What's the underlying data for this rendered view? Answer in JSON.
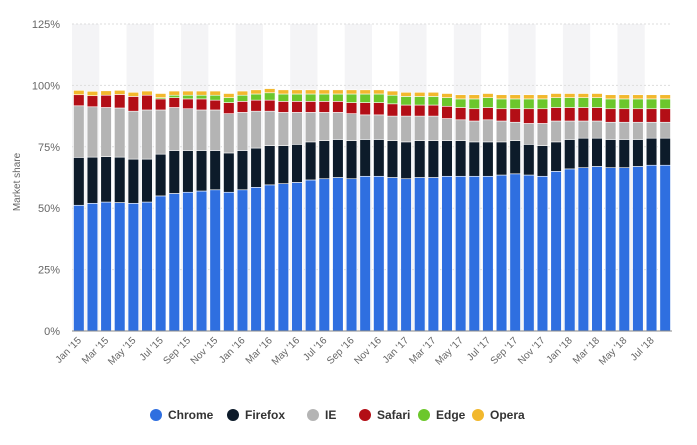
{
  "chart_data": {
    "type": "bar",
    "stacked": true,
    "title": "",
    "xlabel": "",
    "ylabel": "Market share",
    "ylim": [
      0,
      125
    ],
    "yticks": [
      0,
      25,
      50,
      75,
      100,
      125
    ],
    "ytick_labels": [
      "0%",
      "25%",
      "50%",
      "75%",
      "100%",
      "125%"
    ],
    "legend_position": "bottom",
    "categories": [
      "Jan '15",
      "Feb '15",
      "Mar '15",
      "Apr '15",
      "May '15",
      "Jun '15",
      "Jul '15",
      "Aug '15",
      "Sep '15",
      "Oct '15",
      "Nov '15",
      "Dec '15",
      "Jan '16",
      "Feb '16",
      "Mar '16",
      "Apr '16",
      "May '16",
      "Jun '16",
      "Jul '16",
      "Aug '16",
      "Sep '16",
      "Oct '16",
      "Nov '16",
      "Dec '16",
      "Jan '17",
      "Feb '17",
      "Mar '17",
      "Apr '17",
      "May '17",
      "Jun '17",
      "Jul '17",
      "Aug '17",
      "Sep '17",
      "Oct '17",
      "Nov '17",
      "Dec '17",
      "Jan '18",
      "Feb '18",
      "Mar '18",
      "Apr '18",
      "May '18",
      "Jun '18",
      "Jul '18",
      "Aug '18"
    ],
    "shown_tick_labels": [
      "Jan '15",
      "Mar '15",
      "May '15",
      "Jul '15",
      "Sep '15",
      "Nov '15",
      "Jan '16",
      "Mar '16",
      "May '16",
      "Jul '16",
      "Sep '16",
      "Nov '16",
      "Jan '17",
      "Mar '17",
      "May '17",
      "Jul '17",
      "Sep '17",
      "Nov '17",
      "Jan '18",
      "Mar '18",
      "May '18",
      "Jul '18"
    ],
    "series": [
      {
        "name": "Chrome",
        "color": "#2f6fe0",
        "values": [
          51.2,
          52.0,
          52.5,
          52.3,
          52.0,
          52.5,
          55.0,
          56.0,
          56.5,
          57.0,
          57.5,
          56.5,
          57.5,
          58.5,
          59.5,
          60.0,
          60.5,
          61.5,
          62.0,
          62.5,
          62.0,
          63.0,
          63.0,
          62.5,
          62.0,
          62.5,
          62.5,
          63.0,
          63.0,
          63.0,
          63.0,
          63.5,
          64.0,
          63.5,
          63.0,
          65.0,
          66.0,
          66.5,
          67.0,
          66.5,
          66.5,
          67.0,
          67.5,
          67.5
        ]
      },
      {
        "name": "Firefox",
        "color": "#0d1b2a",
        "values": [
          19.5,
          18.8,
          18.5,
          18.5,
          18.0,
          17.5,
          17.0,
          17.5,
          17.0,
          16.5,
          16.0,
          16.0,
          16.0,
          16.0,
          16.0,
          15.5,
          15.5,
          15.5,
          15.5,
          15.5,
          15.5,
          15.0,
          15.0,
          15.0,
          15.0,
          15.0,
          15.0,
          14.5,
          14.5,
          14.0,
          14.0,
          13.5,
          13.5,
          12.5,
          12.5,
          12.0,
          12.0,
          12.0,
          11.5,
          11.5,
          11.5,
          11.0,
          11.0,
          11.0
        ]
      },
      {
        "name": "IE",
        "color": "#b4b4b4",
        "values": [
          21.0,
          20.5,
          20.0,
          20.0,
          19.5,
          20.0,
          18.0,
          17.5,
          17.0,
          16.5,
          16.5,
          16.0,
          15.5,
          15.0,
          14.0,
          13.5,
          13.0,
          12.0,
          11.5,
          11.0,
          11.0,
          10.0,
          10.0,
          10.0,
          10.5,
          10.0,
          10.0,
          9.0,
          8.5,
          8.5,
          9.0,
          8.5,
          7.5,
          8.5,
          9.0,
          8.5,
          7.5,
          7.0,
          7.0,
          7.0,
          7.0,
          7.0,
          6.5,
          6.5
        ]
      },
      {
        "name": "Safari",
        "color": "#b30e16",
        "values": [
          4.5,
          4.5,
          5.0,
          5.5,
          6.0,
          6.0,
          4.5,
          4.0,
          4.0,
          4.5,
          4.0,
          4.5,
          4.5,
          4.5,
          4.5,
          4.5,
          4.5,
          4.5,
          4.5,
          4.5,
          4.5,
          5.0,
          5.0,
          5.0,
          4.5,
          4.5,
          4.5,
          5.0,
          5.0,
          5.0,
          5.0,
          5.0,
          5.5,
          6.0,
          6.0,
          5.5,
          5.5,
          5.5,
          5.5,
          5.5,
          5.5,
          5.5,
          5.5,
          5.5
        ]
      },
      {
        "name": "Edge",
        "color": "#6cc72c",
        "values": [
          0,
          0,
          0,
          0,
          0,
          0,
          0.5,
          1.0,
          1.5,
          1.5,
          2.0,
          2.0,
          2.5,
          2.5,
          3.0,
          3.0,
          3.0,
          3.0,
          3.0,
          3.0,
          3.5,
          3.5,
          3.5,
          3.5,
          3.5,
          3.5,
          3.5,
          3.5,
          3.5,
          4.0,
          4.0,
          4.0,
          4.0,
          4.0,
          4.0,
          4.0,
          4.0,
          4.0,
          4.0,
          4.0,
          4.0,
          4.0,
          4.0,
          4.0
        ]
      },
      {
        "name": "Opera",
        "color": "#f2b82d",
        "values": [
          1.8,
          1.8,
          1.8,
          1.7,
          1.7,
          1.7,
          1.7,
          1.7,
          1.7,
          1.7,
          1.7,
          1.7,
          1.7,
          1.7,
          1.7,
          1.7,
          1.7,
          1.7,
          1.7,
          1.7,
          1.7,
          1.7,
          1.7,
          1.7,
          1.7,
          1.7,
          1.7,
          1.7,
          1.7,
          1.7,
          1.7,
          1.7,
          1.7,
          1.7,
          1.7,
          1.7,
          1.7,
          1.7,
          1.7,
          1.7,
          1.7,
          1.7,
          1.7,
          1.7
        ]
      }
    ]
  }
}
